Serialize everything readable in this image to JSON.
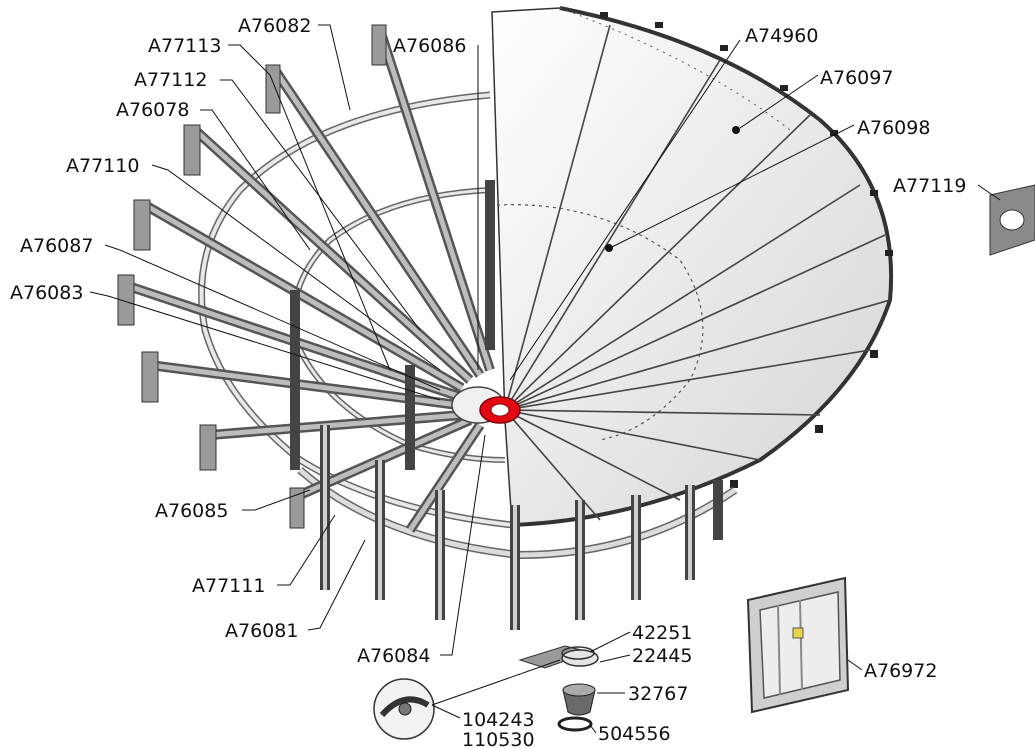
{
  "labels": {
    "a77113": "A77113",
    "a76082": "A76082",
    "a76086": "A76086",
    "a77112": "A77112",
    "a76078": "A76078",
    "a77110": "A77110",
    "a76087": "A76087",
    "a76083": "A76083",
    "a74960": "A74960",
    "a76097": "A76097",
    "a76098": "A76098",
    "a77119": "A77119",
    "a76085": "A76085",
    "a77111": "A77111",
    "a76081": "A76081",
    "a76084": "A76084",
    "p42251": "42251",
    "p22445": "22445",
    "p32767": "32767",
    "a76972": "A76972",
    "p104243": "104243",
    "p110530": "110530",
    "p504556": "504556"
  },
  "colors": {
    "hub_highlight": "#e30613",
    "frame": "#555555",
    "panel": "#d4d4d4"
  }
}
